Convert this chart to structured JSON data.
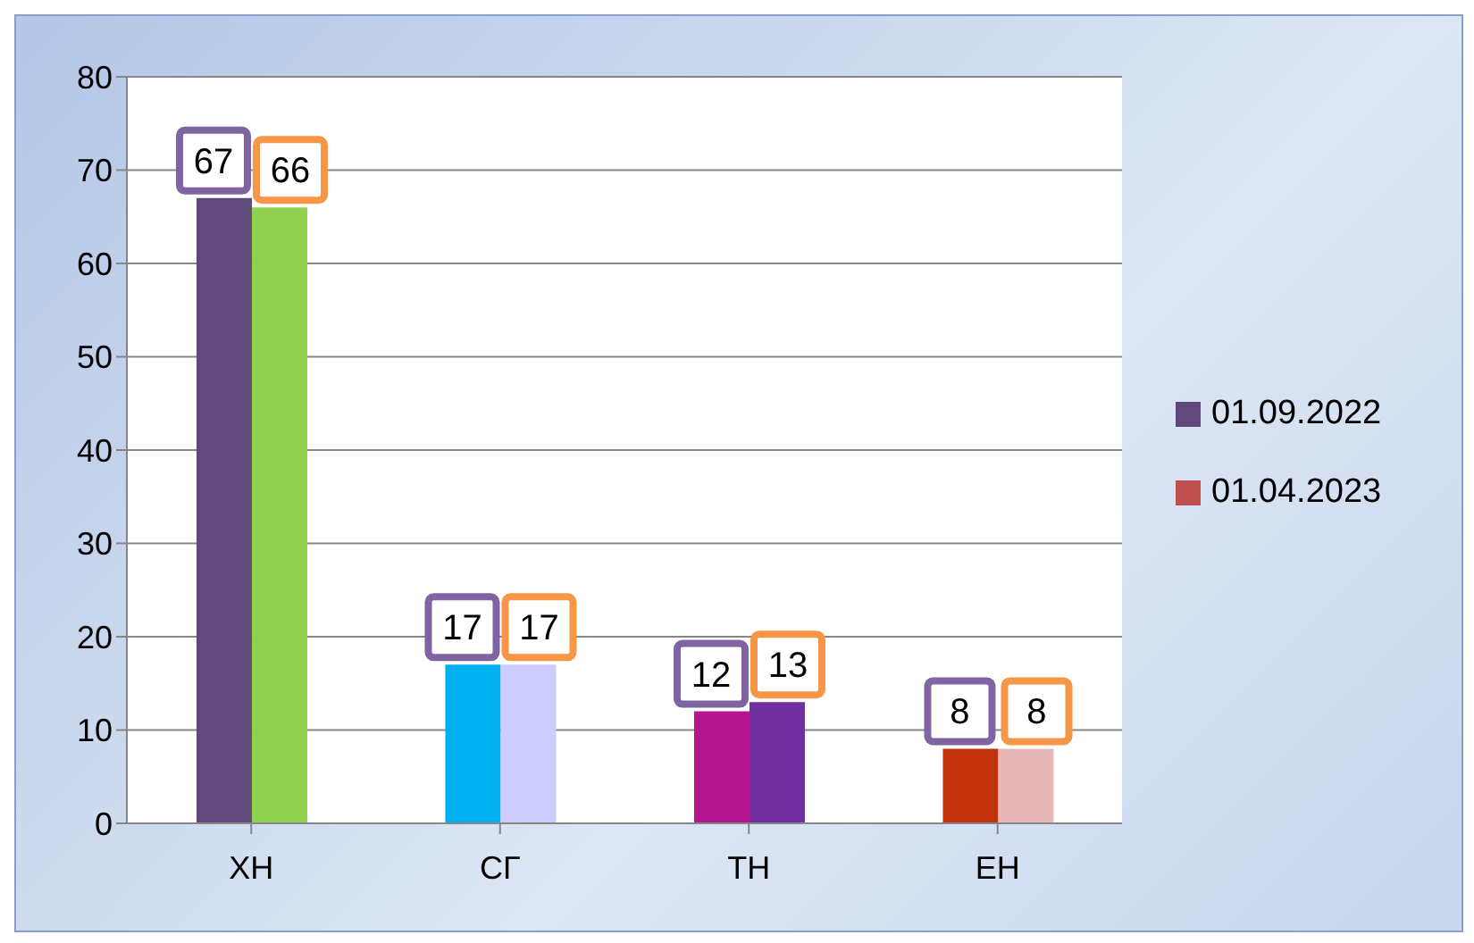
{
  "chart_data": {
    "type": "bar",
    "categories": [
      "ХН",
      "СГ",
      "ТН",
      "ЕН"
    ],
    "series": [
      {
        "name": "01.09.2022",
        "color": "#604a7b",
        "colors": [
          "#604a7b",
          "#00b0f0",
          "#b5168f",
          "#c0310c"
        ],
        "values": [
          67,
          17,
          12,
          8
        ]
      },
      {
        "name": "01.04.2023",
        "color": "#c0504d",
        "colors": [
          "#92d050",
          "#ccccff",
          "#7030a0",
          "#e6b9b8"
        ],
        "values": [
          66,
          17,
          13,
          8
        ]
      }
    ],
    "ylim": [
      0,
      80
    ],
    "yticks": [
      0,
      10,
      20,
      30,
      40,
      50,
      60,
      70,
      80
    ],
    "grid": "y",
    "legend": "right",
    "data_labels": true
  }
}
